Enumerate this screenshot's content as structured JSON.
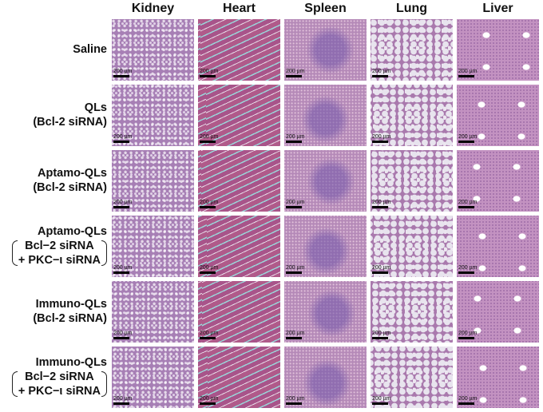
{
  "columns": [
    "Kidney",
    "Heart",
    "Spleen",
    "Lung",
    "Liver"
  ],
  "rows": [
    {
      "line1": "Saline",
      "line2": "",
      "line3": "",
      "bracketed": false
    },
    {
      "line1": "QLs",
      "line2": "(Bcl-2 siRNA)",
      "line3": "",
      "bracketed": false
    },
    {
      "line1": "Aptamo-QLs",
      "line2": "(Bcl-2 siRNA)",
      "line3": "",
      "bracketed": false
    },
    {
      "line1": "Aptamo-QLs",
      "line2": "Bcl−2 siRNA",
      "line3": "+ PKC−ι siRNA",
      "bracketed": true
    },
    {
      "line1": "Immuno-QLs",
      "line2": "(Bcl-2 siRNA)",
      "line3": "",
      "bracketed": false
    },
    {
      "line1": "Immuno-QLs",
      "line2": "Bcl−2 siRNA",
      "line3": "+ PKC−ι siRNA",
      "bracketed": true
    }
  ],
  "scale_bar_label": "200 µm",
  "colors": {
    "stain_pink": "#b05a8a",
    "stain_purple": "#a77fb5",
    "connective_cyan": "#9ad3d8"
  }
}
